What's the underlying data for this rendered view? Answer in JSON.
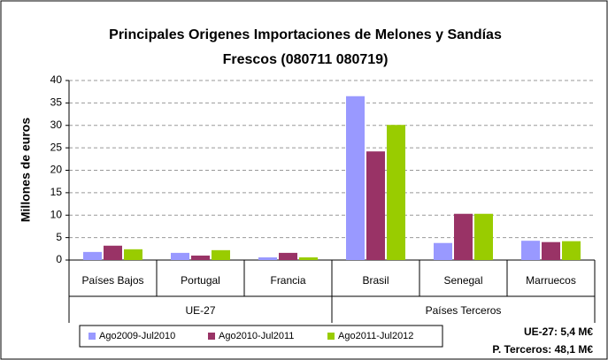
{
  "chart_data": {
    "type": "bar",
    "title": [
      "Principales Origenes Importaciones de Melones y Sandías",
      "Frescos (080711 080719)"
    ],
    "y_label": "Millones de euros",
    "groups": [
      {
        "name": "UE-27",
        "categories": [
          "Países Bajos",
          "Portugal",
          "Francia"
        ]
      },
      {
        "name": "Países Terceros",
        "categories": [
          "Brasil",
          "Senegal",
          "Marruecos"
        ]
      }
    ],
    "series": [
      {
        "name": "Ago2009-Jul2010",
        "color": "#9999ff",
        "values": [
          1.8,
          1.6,
          0.6,
          36.5,
          3.8,
          4.3
        ]
      },
      {
        "name": "Ago2010-Jul2011",
        "color": "#993366",
        "values": [
          3.2,
          1.0,
          1.6,
          24.2,
          10.3,
          4.0
        ]
      },
      {
        "name": "Ago2011-Jul2012",
        "color": "#99cc00",
        "values": [
          2.4,
          2.2,
          0.6,
          30.1,
          10.3,
          4.2
        ]
      }
    ],
    "ylim": [
      0,
      40
    ],
    "yticks": [
      0,
      5,
      10,
      15,
      20,
      25,
      30,
      35,
      40
    ],
    "grid": true,
    "annotations": [
      "UE-27: 5,4 M€",
      "P. Terceros: 48,1 M€"
    ]
  }
}
